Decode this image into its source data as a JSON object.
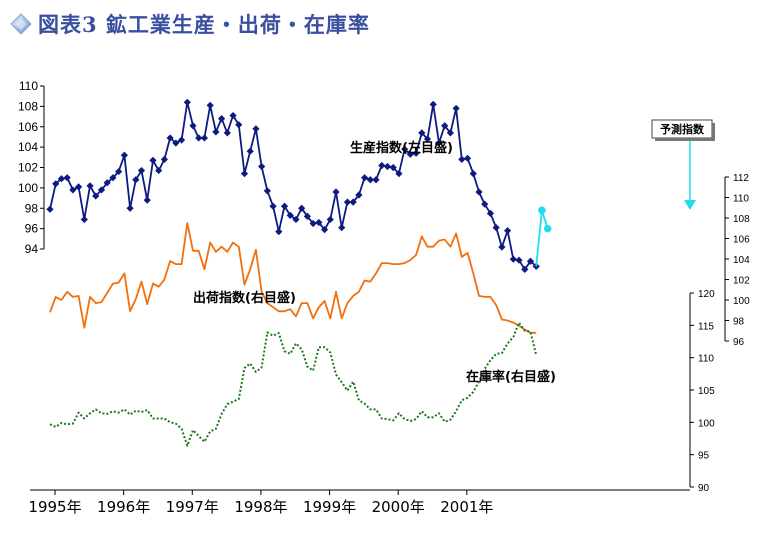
{
  "title": "図表3 鉱工業生産・出荷・在庫率",
  "icon": "diamond-bullet-icon",
  "chart_data": {
    "type": "line",
    "x_labels": [
      "1995年",
      "1996年",
      "1997年",
      "1998年",
      "1999年",
      "2000年",
      "2001年"
    ],
    "x_start": "1995-01",
    "x_step": "month",
    "series": [
      {
        "name": "生産指数(左目盛)",
        "axis": "left-top",
        "color": "#0d1a80",
        "style": "solid-diamond",
        "ylim": [
          94,
          110
        ],
        "ticks": [
          94,
          96,
          98,
          100,
          102,
          104,
          106,
          108,
          110
        ],
        "values": [
          97.9,
          100.4,
          100.9,
          101.0,
          99.8,
          100.1,
          96.9,
          100.2,
          99.2,
          99.8,
          100.5,
          101.0,
          101.6,
          103.2,
          98.0,
          100.8,
          101.7,
          98.8,
          102.7,
          101.7,
          102.8,
          104.9,
          104.4,
          104.7,
          108.4,
          106.1,
          104.9,
          104.9,
          108.1,
          105.5,
          106.8,
          105.4,
          107.1,
          106.2,
          101.4,
          103.6,
          105.8,
          102.1,
          99.7,
          98.2,
          95.7,
          98.2,
          97.3,
          96.9,
          98.0,
          97.2,
          96.5,
          96.6,
          95.9,
          96.9,
          99.6,
          96.1,
          98.6,
          98.6,
          99.3,
          101.0,
          100.8,
          100.8,
          102.2,
          102.1,
          102.0,
          101.4,
          103.8,
          103.3,
          103.4,
          105.4,
          104.8,
          108.2,
          104.4,
          106.1,
          105.4,
          107.8,
          102.8,
          102.9,
          101.4,
          99.6,
          98.4,
          97.5,
          96.1,
          94.2,
          95.8,
          93.0,
          92.9,
          92.0,
          92.8,
          92.3
        ]
      },
      {
        "name": "予測指数",
        "axis": "left-top",
        "color": "#22ddf0",
        "style": "solid-circle",
        "start_index": 85,
        "values": [
          92.3,
          97.8,
          96.0
        ]
      },
      {
        "name": "出荷指数(右目盛)",
        "axis": "right-top",
        "color": "#f07010",
        "style": "solid",
        "ylim": [
          96,
          112
        ],
        "ticks": [
          96,
          98,
          100,
          102,
          104,
          106,
          108,
          110,
          112
        ],
        "values": [
          98.8,
          100.3,
          100.0,
          100.8,
          100.3,
          100.4,
          97.3,
          100.3,
          99.7,
          99.8,
          100.7,
          101.6,
          101.7,
          102.6,
          98.9,
          100.1,
          101.8,
          99.6,
          101.6,
          101.3,
          102.0,
          103.8,
          103.5,
          103.5,
          107.5,
          104.8,
          104.8,
          103.0,
          105.6,
          104.7,
          105.2,
          104.7,
          105.6,
          105.2,
          101.5,
          103.0,
          104.9,
          100.8,
          99.7,
          99.3,
          98.9,
          98.9,
          99.1,
          98.4,
          99.7,
          99.7,
          98.2,
          99.3,
          99.9,
          98.2,
          100.8,
          98.2,
          99.7,
          100.4,
          100.8,
          101.9,
          101.8,
          102.6,
          103.6,
          103.6,
          103.5,
          103.5,
          103.6,
          103.9,
          104.4,
          106.2,
          105.2,
          105.2,
          105.8,
          105.9,
          105.2,
          106.5,
          104.2,
          104.6,
          102.6,
          100.4,
          100.3,
          100.3,
          99.5,
          98.1,
          98.0,
          97.8,
          97.5,
          97.1,
          96.8,
          96.8
        ]
      },
      {
        "name": "在庫率(右目盛)",
        "axis": "right-bottom",
        "color": "#1a7a1a",
        "style": "dotted",
        "ylim": [
          90,
          120
        ],
        "ticks": [
          90,
          95,
          100,
          105,
          110,
          115,
          120
        ],
        "values": [
          99.7,
          99.3,
          99.9,
          99.7,
          99.8,
          101.5,
          100.6,
          101.4,
          102.0,
          101.4,
          101.3,
          101.7,
          101.5,
          102.0,
          101.2,
          101.8,
          101.6,
          101.9,
          100.6,
          100.6,
          100.6,
          100.0,
          99.8,
          99.0,
          96.4,
          98.8,
          97.9,
          97.0,
          98.6,
          99.0,
          101.3,
          102.8,
          103.2,
          103.6,
          108.4,
          109.1,
          107.8,
          108.5,
          113.9,
          113.4,
          113.8,
          111.0,
          110.6,
          112.2,
          111.3,
          108.6,
          108.0,
          111.6,
          111.6,
          110.8,
          107.4,
          106.2,
          104.9,
          106.3,
          103.4,
          102.9,
          102.0,
          102.0,
          100.6,
          100.5,
          100.3,
          101.4,
          100.5,
          100.2,
          100.5,
          101.7,
          100.8,
          100.8,
          101.4,
          100.1,
          100.4,
          101.7,
          103.4,
          103.8,
          104.7,
          106.3,
          108.3,
          109.6,
          110.6,
          110.7,
          112.2,
          113.2,
          115.4,
          114.2,
          114.0,
          110.4
        ]
      }
    ],
    "series_labels": {
      "production": "生産指数(左目盛)",
      "shipment": "出荷指数(右目盛)",
      "inventory": "在庫率(右目盛)"
    },
    "callout": {
      "text": "予測指数",
      "target": "予測指数"
    },
    "legend": "inline-labels",
    "grid": false
  }
}
